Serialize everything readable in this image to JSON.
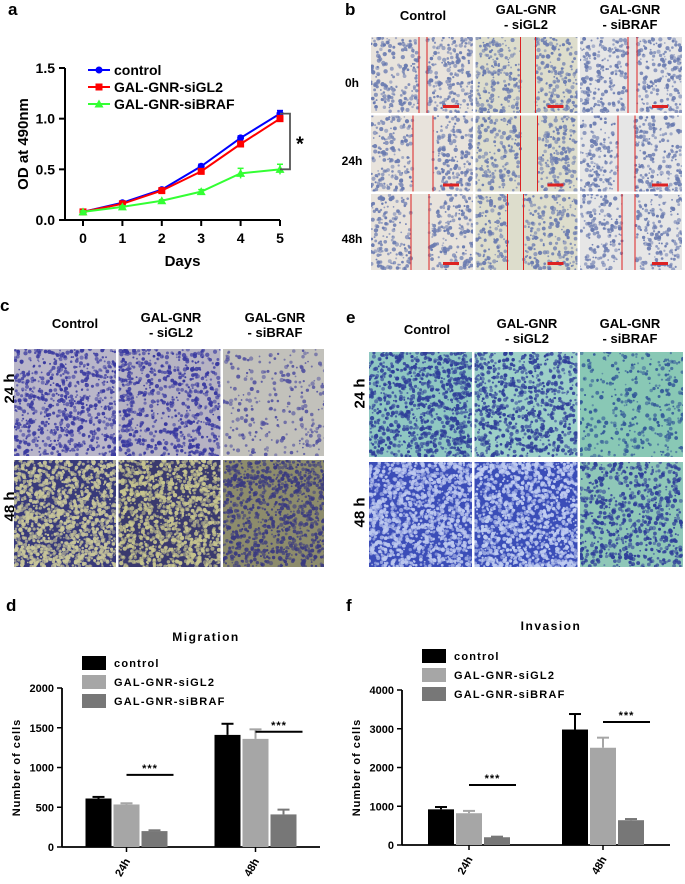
{
  "panels": {
    "a": "a",
    "b": "b",
    "c": "c",
    "d": "d",
    "e": "e",
    "f": "f"
  },
  "chart_a": {
    "type": "line",
    "x": [
      0,
      1,
      2,
      3,
      4,
      5
    ],
    "xlabel": "Days",
    "ylabel": "OD at 490nm",
    "ylim": [
      0.0,
      1.5
    ],
    "yticks": [
      "0.0",
      "0.5",
      "1.0",
      "1.5"
    ],
    "xticks": [
      "0",
      "1",
      "2",
      "3",
      "4",
      "5"
    ],
    "series": [
      {
        "name": "control",
        "color": "#0000ff",
        "marker": "circle",
        "values": [
          0.08,
          0.17,
          0.3,
          0.53,
          0.81,
          1.05
        ],
        "err": [
          0.01,
          0.01,
          0.01,
          0.02,
          0.02,
          0.03
        ]
      },
      {
        "name": "GAL-GNR-siGL2",
        "color": "#ff0000",
        "marker": "square",
        "values": [
          0.08,
          0.16,
          0.29,
          0.48,
          0.75,
          1.0
        ],
        "err": [
          0.01,
          0.01,
          0.01,
          0.02,
          0.02,
          0.03
        ]
      },
      {
        "name": "GAL-GNR-siBRAF",
        "color": "#33ff33",
        "marker": "triangle",
        "values": [
          0.08,
          0.13,
          0.19,
          0.28,
          0.46,
          0.5
        ],
        "err": [
          0.01,
          0.01,
          0.01,
          0.02,
          0.05,
          0.05
        ]
      }
    ],
    "significance": "*",
    "legend": "top-left"
  },
  "panel_b": {
    "columns": [
      "Control",
      "GAL-GNR\n- siGL2",
      "GAL-GNR\n- siBRAF"
    ],
    "rows": [
      "0h",
      "24h",
      "48h"
    ]
  },
  "panel_c": {
    "columns": [
      "Control",
      "GAL-GNR\n- siGL2",
      "GAL-GNR\n- siBRAF"
    ],
    "rows": [
      "24 h",
      "48 h"
    ]
  },
  "panel_e": {
    "columns": [
      "Control",
      "GAL-GNR\n- siGL2",
      "GAL-GNR\n- siBRAF"
    ],
    "rows": [
      "24 h",
      "48 h"
    ]
  },
  "chart_d": {
    "type": "bar",
    "title": "Migration",
    "ylabel": "Number of cells",
    "categories": [
      "24h",
      "48h"
    ],
    "ylim": [
      0,
      2000
    ],
    "yticks": [
      "0",
      "500",
      "1000",
      "1500",
      "2000"
    ],
    "series": [
      {
        "name": "control",
        "color": "#000000",
        "values": [
          610,
          1410
        ],
        "err": [
          20,
          140
        ]
      },
      {
        "name": "GAL-GNR-siGL2",
        "color": "#a6a6a6",
        "values": [
          535,
          1360
        ],
        "err": [
          15,
          120
        ]
      },
      {
        "name": "GAL-GNR-siBRAF",
        "color": "#777777",
        "values": [
          200,
          410
        ],
        "err": [
          10,
          60
        ]
      }
    ],
    "significance": [
      "***",
      "***"
    ],
    "legend": "top-left"
  },
  "chart_f": {
    "type": "bar",
    "title": "Invasion",
    "ylabel": "Number of cells",
    "categories": [
      "24h",
      "48h"
    ],
    "ylim": [
      0,
      4000
    ],
    "yticks": [
      "0",
      "1000",
      "2000",
      "3000",
      "4000"
    ],
    "series": [
      {
        "name": "control",
        "color": "#000000",
        "values": [
          920,
          2980
        ],
        "err": [
          60,
          400
        ]
      },
      {
        "name": "GAL-GNR-siGL2",
        "color": "#a6a6a6",
        "values": [
          820,
          2510
        ],
        "err": [
          60,
          260
        ]
      },
      {
        "name": "GAL-GNR-siBRAF",
        "color": "#777777",
        "values": [
          200,
          640
        ],
        "err": [
          15,
          30
        ]
      }
    ],
    "significance": [
      "***",
      "***"
    ],
    "legend": "top-left"
  }
}
